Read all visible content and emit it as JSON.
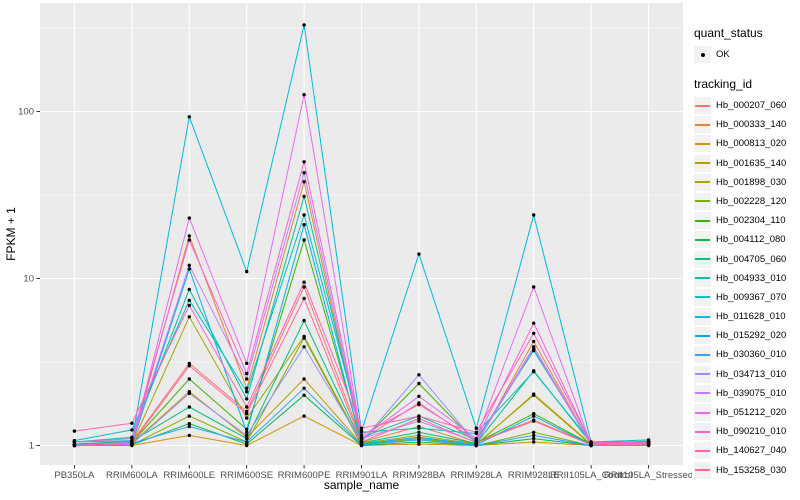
{
  "figure": {
    "background": "#FFFFFF",
    "panel_background": "#EBEBEB",
    "grid_color": "#FFFFFF",
    "tick_color": "#333333",
    "tick_text_color": "#4D4D4D",
    "axis_title_color": "#000000",
    "legend_key_background": "#F2F2F2",
    "point_color": "#000000"
  },
  "chart_data": {
    "type": "line",
    "title": "",
    "xlabel": "sample_name",
    "ylabel": "FPKM + 1",
    "y_scale": "log10",
    "grid": true,
    "legend_position": "right",
    "y_ticks": [
      "1",
      "10",
      "100"
    ],
    "y_tick_values": [
      1,
      10,
      100
    ],
    "y_minor_values": [
      3.162,
      31.62,
      316.2
    ],
    "ylim": [
      0.76,
      440
    ],
    "categories": [
      "PB350LA",
      "RRIM600LA",
      "RRIM600LE",
      "RRIM600SE",
      "RRIM600PE",
      "RRIM901LA",
      "RRIM928BA",
      "RRIM928LA",
      "RRIM928LE",
      "RRII105LA_Control",
      "RRII105LA_Stressed"
    ],
    "legend": {
      "quant_status_title": "quant_status",
      "quant_status_items": [
        {
          "label": "OK",
          "marker": "point",
          "color": "#000000"
        }
      ],
      "tracking_id_title": "tracking_id"
    },
    "series": [
      {
        "name": "Hb_000207_060",
        "color": "#F8766D",
        "values": [
          1.02,
          1.05,
          3.1,
          1.6,
          8.9,
          1.08,
          1.8,
          1.05,
          1.42,
          1.02,
          1.03
        ]
      },
      {
        "name": "Hb_000333_140",
        "color": "#EA8331",
        "values": [
          1.0,
          1.02,
          18.0,
          2.2,
          38.0,
          1.05,
          1.3,
          1.02,
          4.2,
          1.01,
          1.02
        ]
      },
      {
        "name": "Hb_000813_020",
        "color": "#D89000",
        "values": [
          1.0,
          1.0,
          1.15,
          1.0,
          1.5,
          1.0,
          1.02,
          1.0,
          1.05,
          1.0,
          1.0
        ]
      },
      {
        "name": "Hb_001635_140",
        "color": "#C09B00",
        "values": [
          1.01,
          1.03,
          2.1,
          1.12,
          2.5,
          1.02,
          1.12,
          1.01,
          2.03,
          1.02,
          1.04
        ]
      },
      {
        "name": "Hb_001898_030",
        "color": "#A3A500",
        "values": [
          1.0,
          1.02,
          5.9,
          1.46,
          4.5,
          1.03,
          1.15,
          1.02,
          2.0,
          1.01,
          1.03
        ]
      },
      {
        "name": "Hb_002228_120",
        "color": "#7CAE00",
        "values": [
          1.0,
          1.01,
          1.5,
          1.05,
          4.4,
          1.01,
          1.1,
          1.0,
          1.2,
          1.0,
          1.02
        ]
      },
      {
        "name": "Hb_002304_110",
        "color": "#39B600",
        "values": [
          1.01,
          1.04,
          2.5,
          1.25,
          17.0,
          1.06,
          2.35,
          1.04,
          1.55,
          1.02,
          1.05
        ]
      },
      {
        "name": "Hb_004112_080",
        "color": "#00BB4E",
        "values": [
          1.0,
          1.01,
          1.35,
          1.02,
          2.0,
          1.0,
          1.05,
          1.0,
          1.1,
          1.0,
          1.02
        ]
      },
      {
        "name": "Hb_004705_060",
        "color": "#00BF7D",
        "values": [
          1.02,
          1.06,
          1.7,
          1.1,
          5.6,
          1.04,
          1.2,
          1.03,
          2.8,
          1.03,
          1.05
        ]
      },
      {
        "name": "Hb_004933_010",
        "color": "#00C1A3",
        "values": [
          1.05,
          1.12,
          8.6,
          1.9,
          31.0,
          1.12,
          1.5,
          1.08,
          3.7,
          1.04,
          1.06
        ]
      },
      {
        "name": "Hb_009367_070",
        "color": "#00BFC4",
        "values": [
          1.07,
          1.24,
          7.4,
          2.1,
          24.0,
          1.2,
          1.27,
          1.18,
          2.77,
          1.05,
          1.08
        ]
      },
      {
        "name": "Hb_011628_010",
        "color": "#00BAE0",
        "values": [
          1.05,
          1.07,
          93.0,
          11.0,
          330.0,
          1.22,
          14.0,
          1.27,
          24.0,
          1.05,
          1.05
        ]
      },
      {
        "name": "Hb_015292_020",
        "color": "#00B0F6",
        "values": [
          1.0,
          1.02,
          11.4,
          1.2,
          21.0,
          1.02,
          1.12,
          1.01,
          1.5,
          1.01,
          1.02
        ]
      },
      {
        "name": "Hb_030360_010",
        "color": "#35A2FF",
        "values": [
          1.01,
          1.03,
          1.3,
          1.05,
          2.2,
          1.01,
          1.08,
          1.0,
          1.15,
          1.0,
          1.01
        ]
      },
      {
        "name": "Hb_034713_010",
        "color": "#9590FF",
        "values": [
          1.0,
          1.02,
          2.05,
          1.15,
          3.9,
          1.05,
          2.65,
          1.03,
          3.8,
          1.01,
          1.02
        ]
      },
      {
        "name": "Hb_039075_010",
        "color": "#C77CFF",
        "values": [
          1.0,
          1.05,
          12.0,
          2.5,
          43.0,
          1.1,
          1.4,
          1.05,
          3.9,
          1.02,
          1.03
        ]
      },
      {
        "name": "Hb_051212_020",
        "color": "#E76BF3",
        "values": [
          1.0,
          1.02,
          23.0,
          3.1,
          126.0,
          1.1,
          1.97,
          1.1,
          8.9,
          1.01,
          1.02
        ]
      },
      {
        "name": "Hb_090210_010",
        "color": "#FA62DB",
        "values": [
          1.05,
          1.1,
          17.0,
          2.7,
          50.0,
          1.15,
          1.76,
          1.08,
          5.4,
          1.03,
          1.04
        ]
      },
      {
        "name": "Hb_140627_040",
        "color": "#FF62BC",
        "values": [
          1.22,
          1.36,
          6.9,
          1.7,
          9.5,
          1.27,
          1.5,
          1.2,
          4.7,
          1.04,
          1.05
        ]
      },
      {
        "name": "Hb_153258_030",
        "color": "#FF6A98",
        "values": [
          1.0,
          1.03,
          3.0,
          1.55,
          7.6,
          1.05,
          1.45,
          1.04,
          1.4,
          1.01,
          1.02
        ]
      }
    ]
  }
}
